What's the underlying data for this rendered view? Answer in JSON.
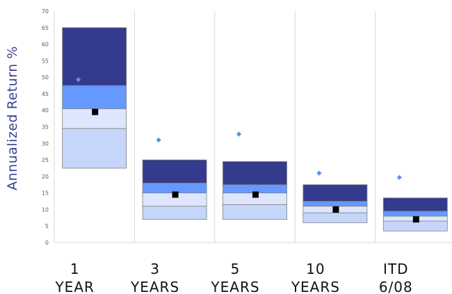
{
  "chart_data": {
    "type": "box-range",
    "ylabel": "Annualized Return  %",
    "ylim": [
      0,
      70
    ],
    "yticks": [
      0,
      5,
      10,
      15,
      20,
      25,
      30,
      35,
      40,
      45,
      50,
      55,
      60,
      65,
      70
    ],
    "grid": {
      "vertical": true,
      "horizontal": false
    },
    "categories": [
      {
        "line1": "1",
        "line2": "YEAR"
      },
      {
        "line1": "3",
        "line2": "YEARS"
      },
      {
        "line1": "5",
        "line2": "YEARS"
      },
      {
        "line1": "10",
        "line2": "YEARS"
      },
      {
        "line1": "ITD",
        "line2": "6/08"
      }
    ],
    "bands": [
      [
        22.5,
        34.5,
        40.5,
        47.5,
        65.0
      ],
      [
        7.0,
        11.0,
        15.0,
        18.0,
        25.0
      ],
      [
        7.0,
        11.5,
        15.0,
        17.5,
        24.5
      ],
      [
        6.0,
        9.0,
        11.0,
        12.5,
        17.5
      ],
      [
        3.5,
        6.5,
        8.0,
        9.5,
        13.5
      ]
    ],
    "square_markers": [
      39.5,
      14.5,
      14.5,
      10.0,
      7.0
    ],
    "diamond_markers": [
      49.3,
      31.0,
      32.8,
      21.0,
      19.7
    ],
    "colors": {
      "band_bottom": "#c6d6fb",
      "band_lower_mid": "#dde6fc",
      "band_upper_mid": "#6699ff",
      "band_top": "#343a8c",
      "square": "#000000",
      "diamond": "#5b8ff0",
      "grid": "#d7d7d7",
      "band_edge": "#7f7f7f"
    }
  }
}
